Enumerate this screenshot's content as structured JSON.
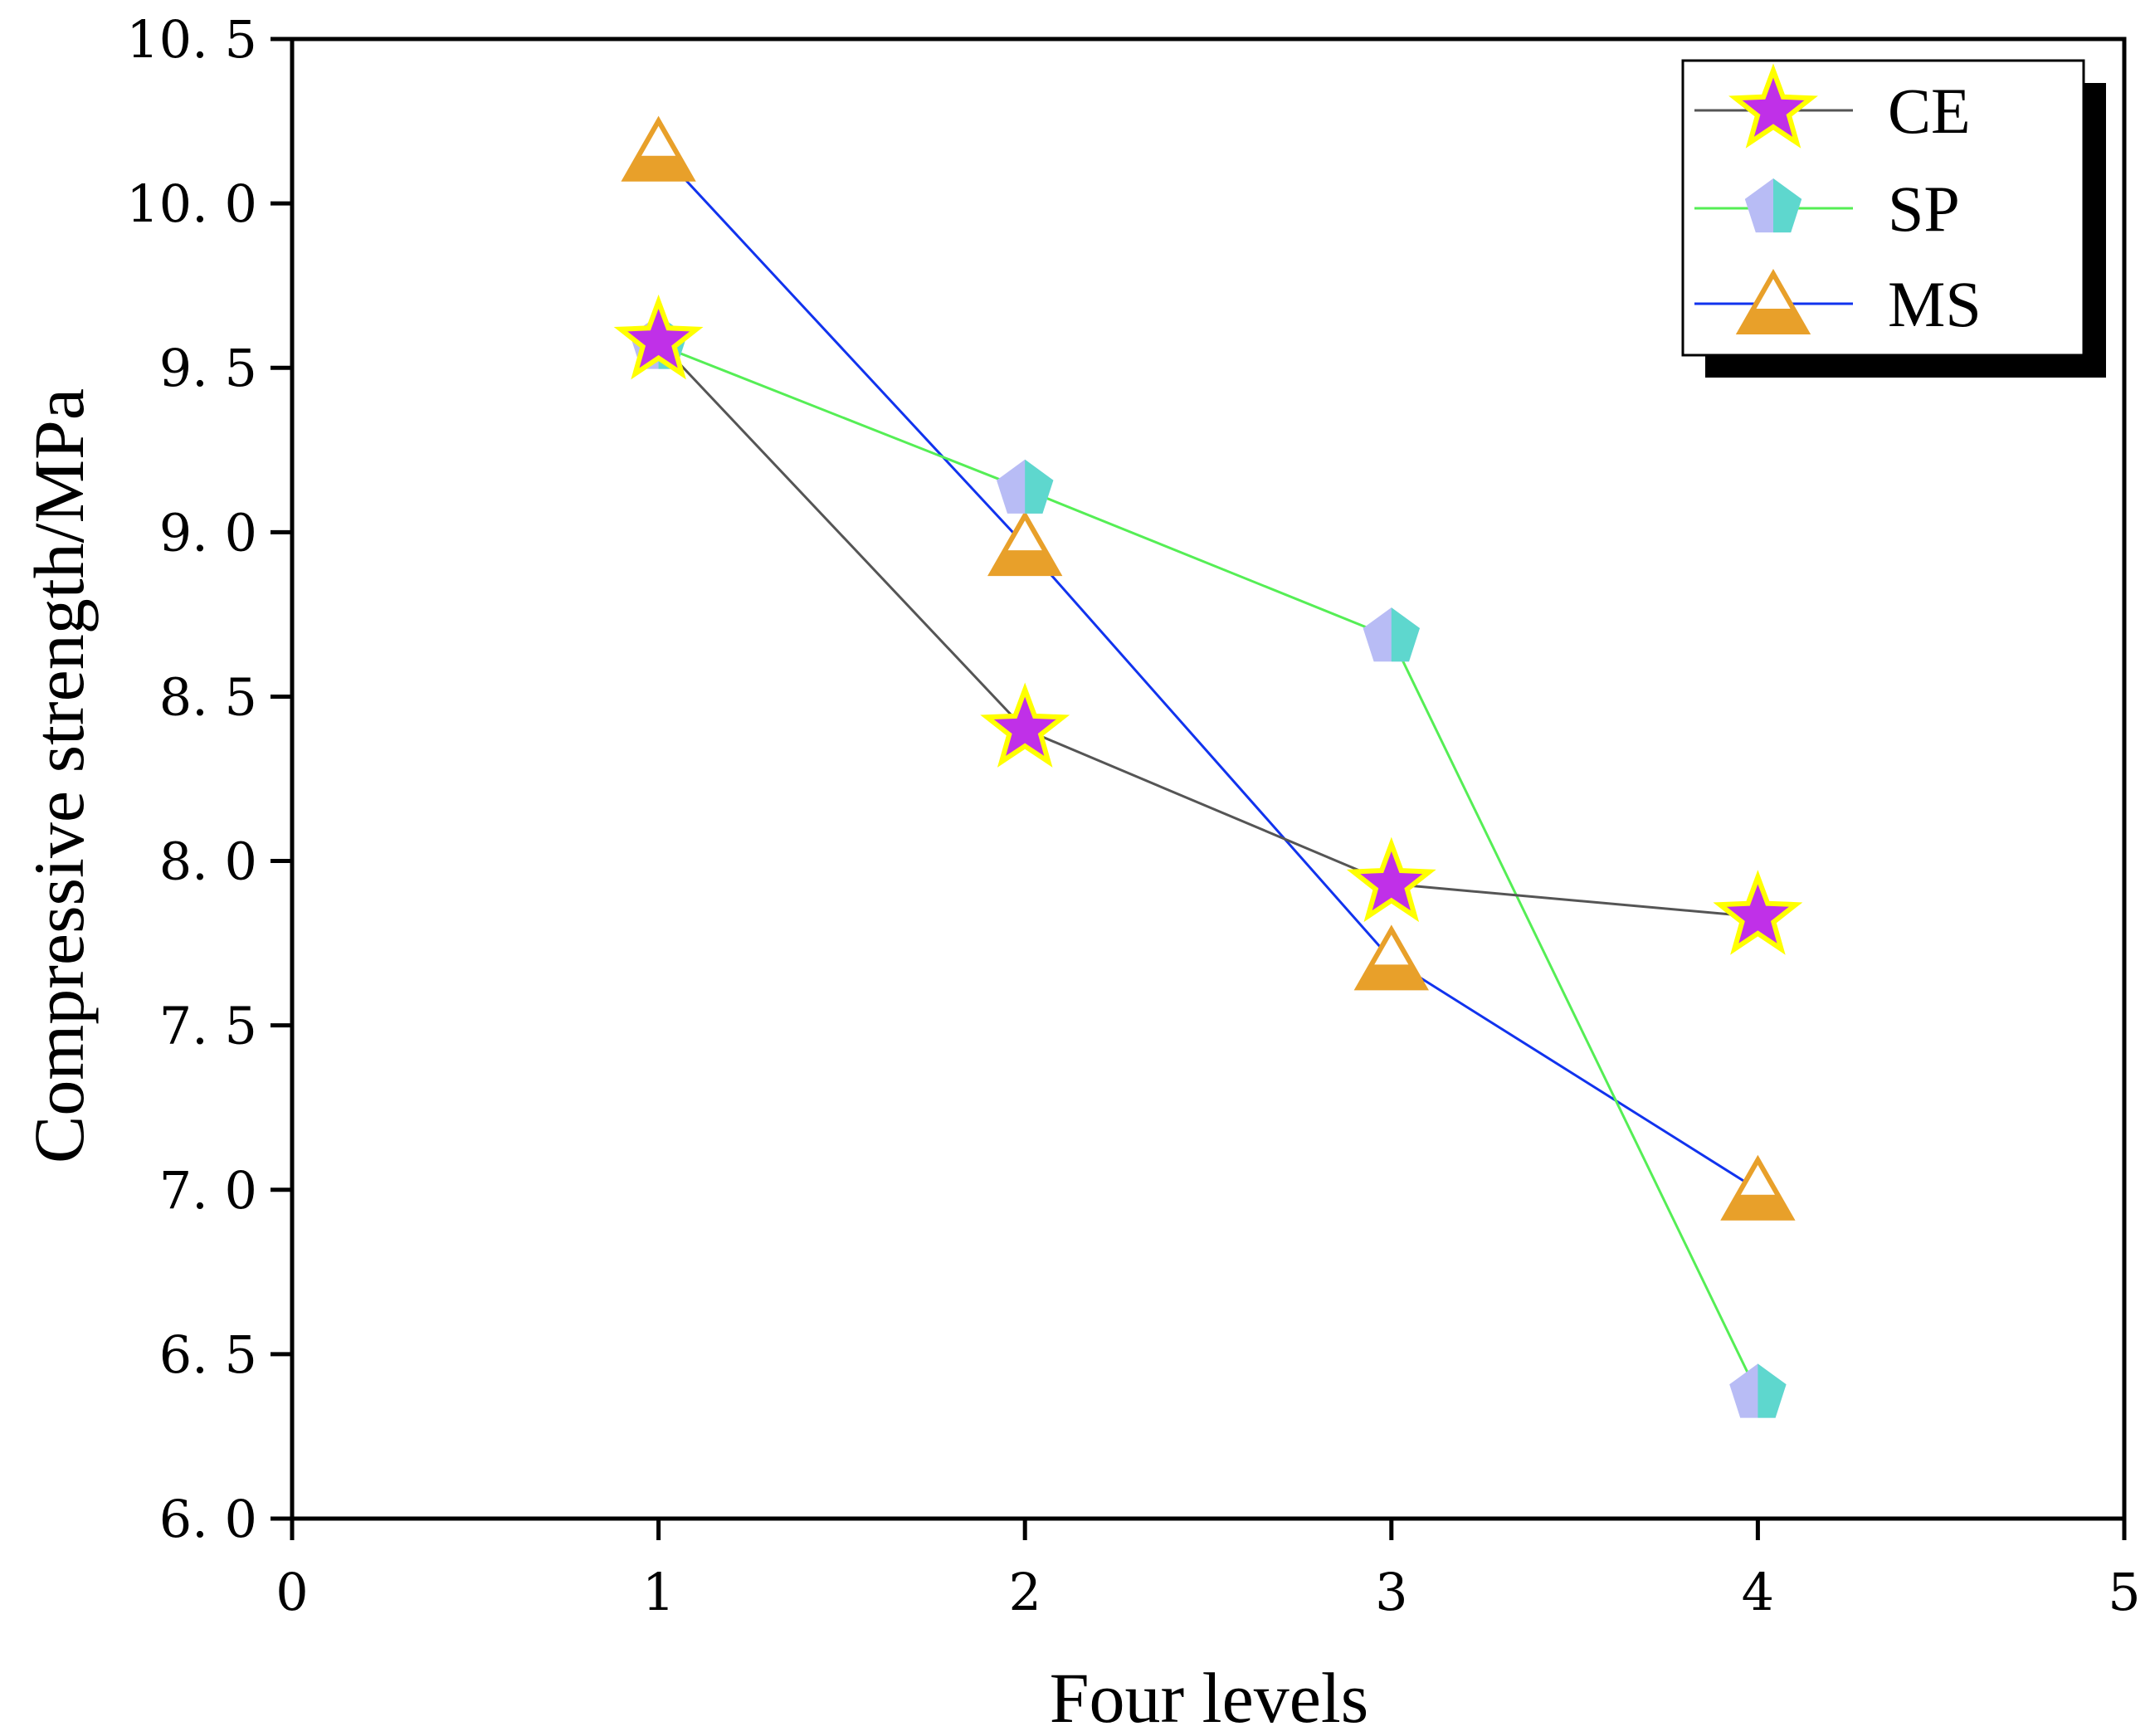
{
  "chart_data": {
    "type": "line",
    "title": "",
    "xlabel": "Four levels",
    "ylabel": "Compressive strength/MPa",
    "xlim": [
      0,
      5
    ],
    "ylim": [
      6.0,
      10.5
    ],
    "xticks": [
      "0",
      "1",
      "2",
      "3",
      "4",
      "5"
    ],
    "yticks": [
      "6. 0",
      "6. 5",
      "7. 0",
      "7. 5",
      "8. 0",
      "8. 5",
      "9. 0",
      "9. 5",
      "10. 0",
      "10. 5"
    ],
    "x": [
      1,
      2,
      3,
      4
    ],
    "grid": false,
    "legend_position": "top-right",
    "series": [
      {
        "name": "CE",
        "marker": "star",
        "line_color": "#555555",
        "marker_fill": "#c030e8",
        "marker_edge": "#ffff00",
        "values": [
          9.58,
          8.4,
          7.93,
          7.83
        ]
      },
      {
        "name": "SP",
        "marker": "pentagon",
        "line_color": "#55ee55",
        "marker_fill": "#b8bcf5",
        "marker_fill_alt": "#40e0c0",
        "values": [
          9.57,
          9.13,
          8.68,
          6.38
        ]
      },
      {
        "name": "MS",
        "marker": "triangle",
        "line_color": "#1133ee",
        "marker_fill": "#e8a02a",
        "marker_edge": "#e8a02a",
        "values": [
          10.16,
          8.96,
          7.7,
          7.0
        ]
      }
    ]
  }
}
